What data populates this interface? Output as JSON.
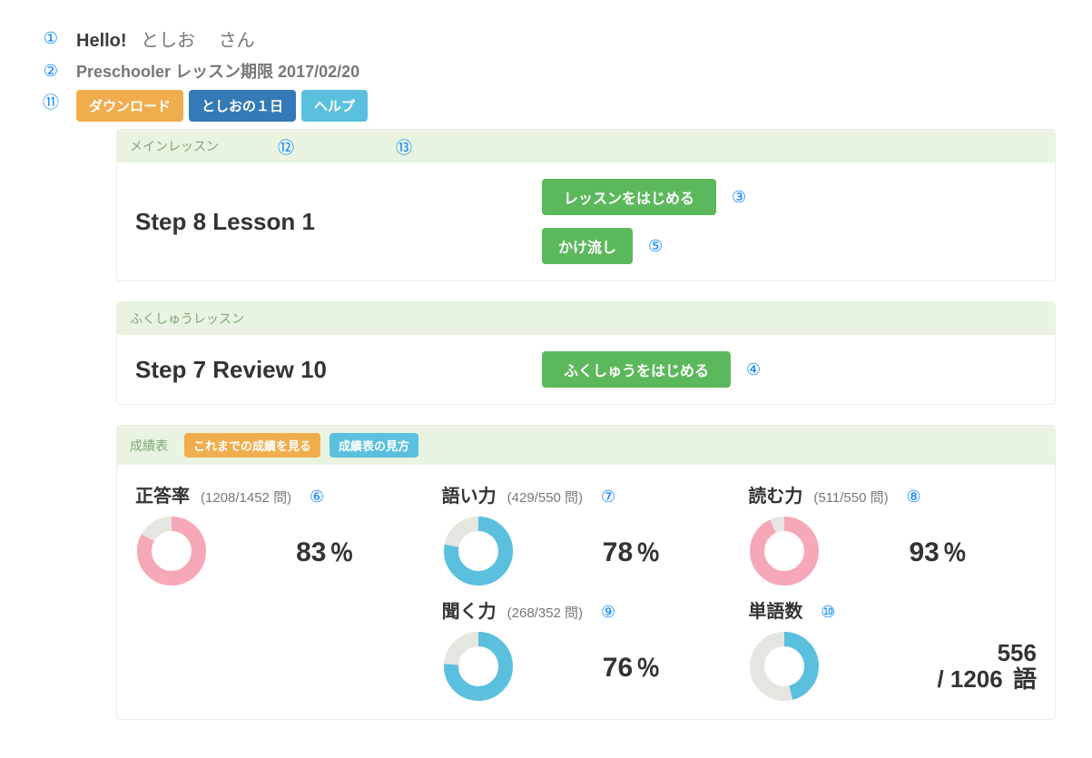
{
  "annotations": {
    "a1": "①",
    "a2": "②",
    "a3": "③",
    "a4": "④",
    "a5": "⑤",
    "a6": "⑥",
    "a7": "⑦",
    "a8": "⑧",
    "a9": "⑨",
    "a10": "⑩",
    "a11": "⑪",
    "a12": "⑫",
    "a13": "⑬"
  },
  "header": {
    "hello_prefix": "Hello!",
    "name": "としお",
    "name_suffix": "さん",
    "subhead": "Preschooler レッスン期限 2017/02/20"
  },
  "buttons": {
    "download": "ダウンロード",
    "diary": "としおの１日",
    "help": "ヘルプ"
  },
  "main_lesson": {
    "panel_title": "メインレッスン",
    "title": "Step 8 Lesson 1",
    "start": "レッスンをはじめる",
    "stream": "かけ流し"
  },
  "review_lesson": {
    "panel_title": "ふくしゅうレッスン",
    "title": "Step 7 Review 10",
    "start": "ふくしゅうをはじめる"
  },
  "stats_panel": {
    "title": "成績表",
    "btn1": "これまでの成績を見る",
    "btn2": "成績表の見方"
  },
  "stats": {
    "correct": {
      "title": "正答率",
      "count": "(1208/1452 問)",
      "pct": 83,
      "pct_text": "83",
      "unit": "％",
      "fg": "#f7a8b8",
      "bg": "#e6e6e0"
    },
    "vocab": {
      "title": "語い力",
      "count": "(429/550 問)",
      "pct": 78,
      "pct_text": "78",
      "unit": "％",
      "fg": "#5bc0de",
      "bg": "#e6e6e0"
    },
    "reading": {
      "title": "読む力",
      "count": "(511/550 問)",
      "pct": 93,
      "pct_text": "93",
      "unit": "％",
      "fg": "#f7a8b8",
      "bg": "#e6e6e0"
    },
    "listening": {
      "title": "聞く力",
      "count": "(268/352 問)",
      "pct": 76,
      "pct_text": "76",
      "unit": "％",
      "fg": "#5bc0de",
      "bg": "#e6e6e0"
    },
    "words": {
      "title": "単語数",
      "count": "",
      "pct": 46,
      "line1": "556",
      "line2": "/ 1206",
      "unit": "語",
      "fg": "#5bc0de",
      "bg": "#e6e6e0"
    }
  }
}
